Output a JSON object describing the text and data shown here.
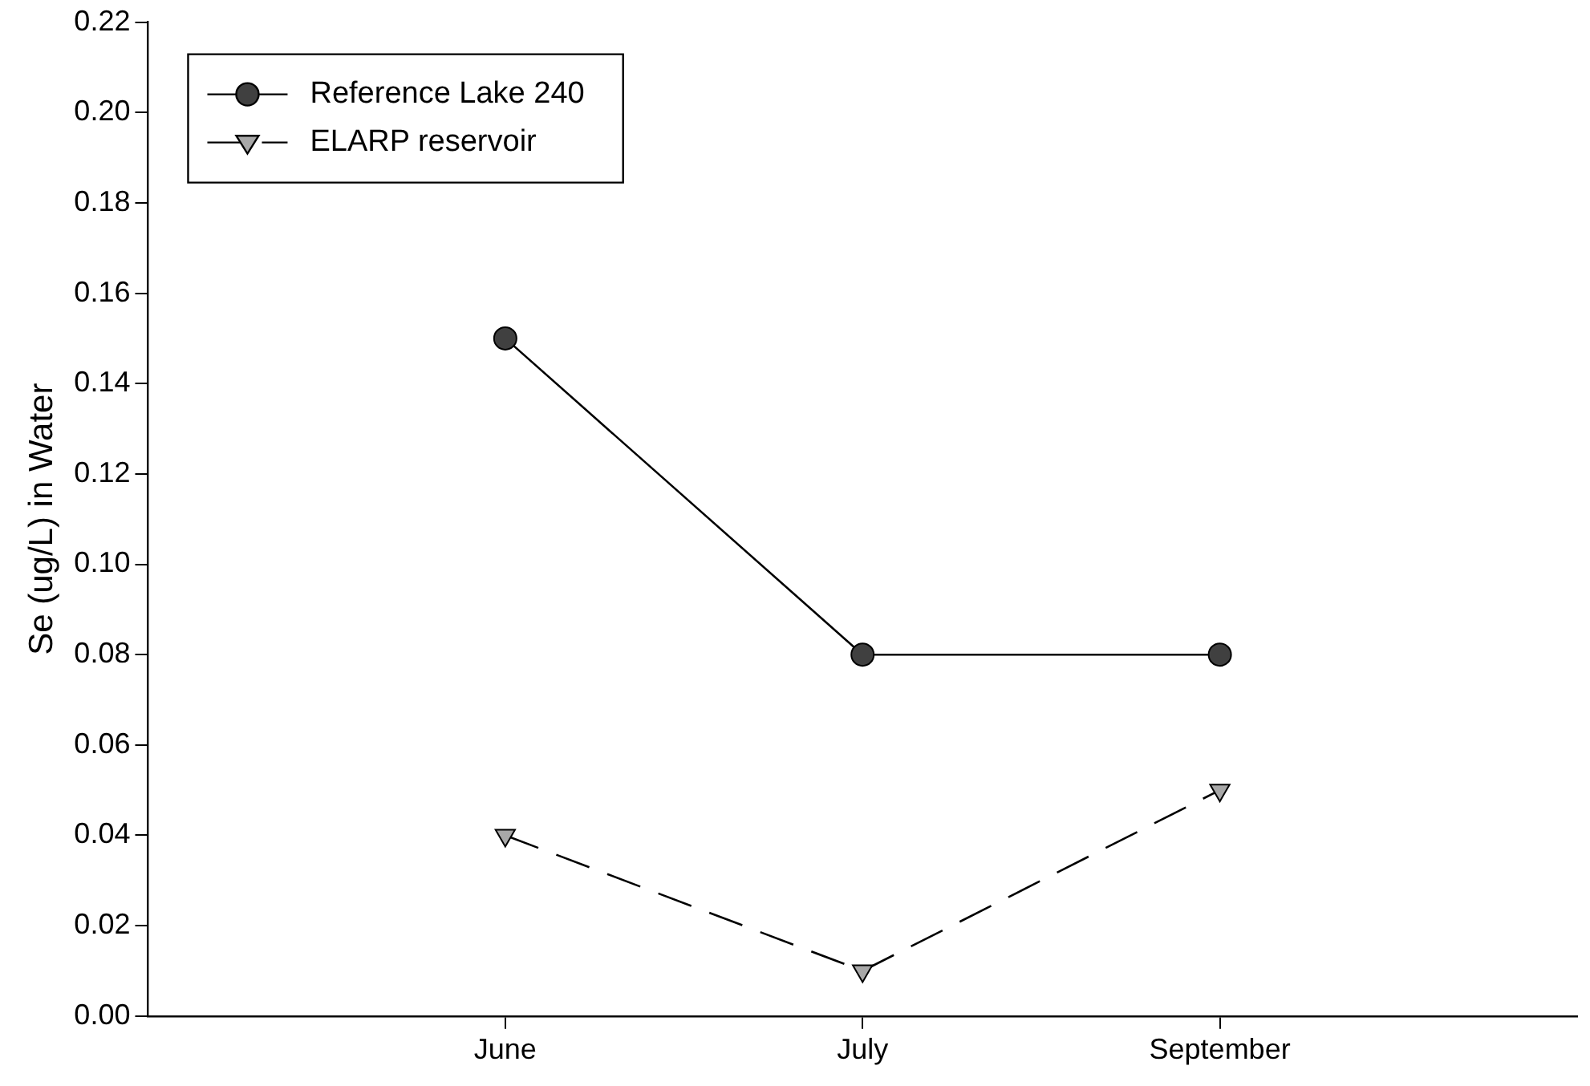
{
  "chart_data": {
    "type": "line",
    "ylabel": "Se (ug/L) in Water",
    "categories": [
      "June",
      "July",
      "September"
    ],
    "series": [
      {
        "name": "Reference Lake 240",
        "color": "#404040",
        "values": [
          0.15,
          0.08,
          0.08
        ],
        "marker": "circle",
        "line_style": "solid"
      },
      {
        "name": "ELARP reservoir",
        "color": "#a8a8a8",
        "values": [
          0.04,
          0.01,
          0.05
        ],
        "marker": "triangle",
        "line_style": "dashed"
      }
    ],
    "ylim": [
      0,
      0.22
    ],
    "yticks": [
      {
        "value": 0,
        "label": "0.00"
      },
      {
        "value": 0.02,
        "label": "0.02"
      },
      {
        "value": 0.04,
        "label": "0.04"
      },
      {
        "value": 0.06,
        "label": "0.06"
      },
      {
        "value": 0.08,
        "label": "0.08"
      },
      {
        "value": 0.1,
        "label": "0.10"
      },
      {
        "value": 0.12,
        "label": "0.12"
      },
      {
        "value": 0.14,
        "label": "0.14"
      },
      {
        "value": 0.16,
        "label": "0.16"
      },
      {
        "value": 0.18,
        "label": "0.18"
      },
      {
        "value": 0.2,
        "label": "0.20"
      },
      {
        "value": 0.22,
        "label": "0.22"
      }
    ],
    "grid": false,
    "legend": "top left"
  }
}
